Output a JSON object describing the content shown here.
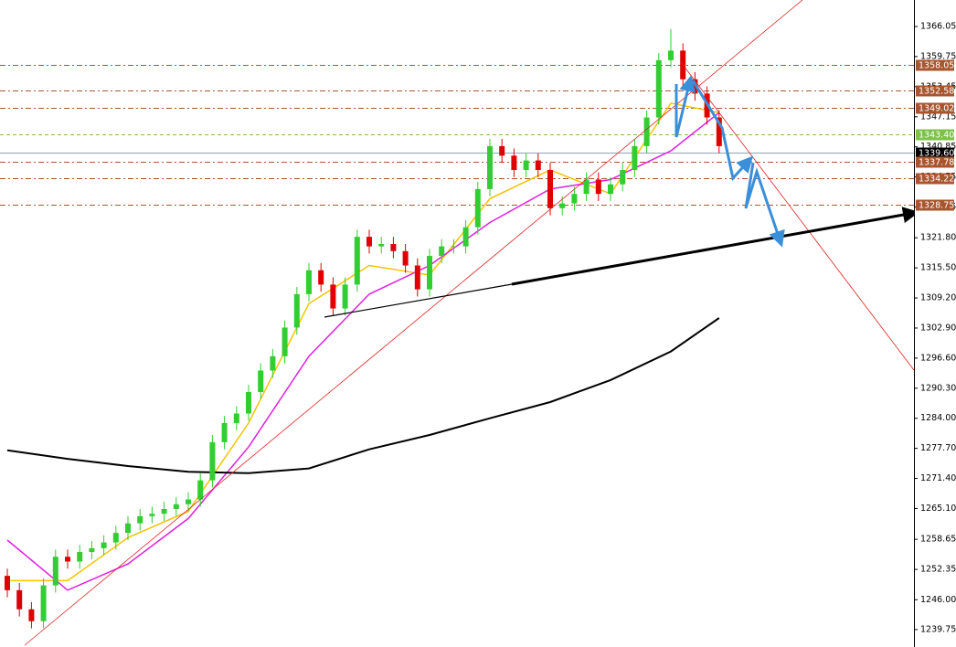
{
  "chart_data": {
    "type": "candlestick",
    "ylim": [
      1236.1,
      1371.6
    ],
    "yticks": [
      {
        "value": 1366.05,
        "label": "1366.05"
      },
      {
        "value": 1359.75,
        "label": "1359.75"
      },
      {
        "value": 1353.45,
        "label": "1353.45"
      },
      {
        "value": 1347.15,
        "label": "1347.15"
      },
      {
        "value": 1340.85,
        "label": "1340.85"
      },
      {
        "value": 1334.55,
        "label": "1334.55"
      },
      {
        "value": 1328.25,
        "label": "1328.25"
      },
      {
        "value": 1321.8,
        "label": "1321.80"
      },
      {
        "value": 1315.5,
        "label": "1315.50"
      },
      {
        "value": 1309.2,
        "label": "1309.20"
      },
      {
        "value": 1302.9,
        "label": "1302.90"
      },
      {
        "value": 1296.6,
        "label": "1296.60"
      },
      {
        "value": 1290.3,
        "label": "1290.30"
      },
      {
        "value": 1284.0,
        "label": "1284.00"
      },
      {
        "value": 1277.7,
        "label": "1277.70"
      },
      {
        "value": 1271.4,
        "label": "1271.40"
      },
      {
        "value": 1265.1,
        "label": "1265.10"
      },
      {
        "value": 1258.65,
        "label": "1258.65"
      },
      {
        "value": 1252.35,
        "label": "1252.35"
      },
      {
        "value": 1246.0,
        "label": "1246.00"
      },
      {
        "value": 1239.75,
        "label": "1239.75"
      }
    ],
    "up_color": "#32cd32",
    "down_color": "#e00000",
    "open": [
      1251,
      1248,
      1244,
      1241.5,
      1249,
      1255,
      1254,
      1256,
      1256.8,
      1258,
      1260,
      1262,
      1263.5,
      1264,
      1265,
      1266,
      1267,
      1271,
      1279,
      1283,
      1285,
      1289.5,
      1294,
      1297,
      1303,
      1310,
      1315,
      1312,
      1307,
      1312,
      1322,
      1320,
      1320.5,
      1319,
      1316,
      1311,
      1318,
      1320,
      1320,
      1324,
      1332,
      1341,
      1339,
      1336,
      1338,
      1336,
      1328,
      1329,
      1331,
      1334,
      1331,
      1333,
      1336,
      1341,
      1347,
      1359,
      1361,
      1355,
      1352,
      1347
    ],
    "high": [
      1252.5,
      1249.5,
      1245.5,
      1250.5,
      1256.5,
      1256.5,
      1257.5,
      1258.3,
      1259.5,
      1261.5,
      1263.5,
      1265,
      1265.5,
      1266.5,
      1267.5,
      1268.5,
      1272.5,
      1280.5,
      1284.5,
      1286.5,
      1291,
      1295.5,
      1298.5,
      1304.5,
      1311.5,
      1316.5,
      1316.5,
      1313.5,
      1313.5,
      1323.5,
      1323.5,
      1322,
      1322,
      1320.5,
      1317.5,
      1319.5,
      1321.5,
      1321.5,
      1325.5,
      1333.5,
      1342.5,
      1342.5,
      1340.5,
      1339.5,
      1339.5,
      1337.5,
      1330.5,
      1332.5,
      1335.5,
      1335.5,
      1334.5,
      1337.5,
      1342.5,
      1348.5,
      1360.5,
      1365.5,
      1362.5,
      1356.5,
      1353.5,
      1348.5
    ],
    "low": [
      1246.5,
      1242.5,
      1240,
      1240,
      1247.5,
      1252.5,
      1252.5,
      1254.5,
      1255.3,
      1256.5,
      1258.5,
      1260.5,
      1262,
      1262.5,
      1263.5,
      1264.5,
      1265.5,
      1269.5,
      1277.5,
      1281.5,
      1283.5,
      1288,
      1292.5,
      1295.5,
      1301.5,
      1308.5,
      1310.5,
      1305.5,
      1305.5,
      1310.5,
      1318.5,
      1318.5,
      1317.5,
      1314.5,
      1309.5,
      1309.5,
      1316.5,
      1318.5,
      1318.5,
      1322.5,
      1330.5,
      1337.5,
      1334.5,
      1334.5,
      1334.5,
      1326.5,
      1326.5,
      1327.5,
      1329.5,
      1329.5,
      1329.5,
      1331.5,
      1334.5,
      1339.5,
      1345.5,
      1357.5,
      1353.5,
      1350.5,
      1345.5,
      1339.5
    ],
    "close": [
      1248,
      1244,
      1241.5,
      1249,
      1255,
      1254,
      1256,
      1256.8,
      1258,
      1260,
      1262,
      1263.5,
      1264,
      1265,
      1266,
      1267,
      1271,
      1279,
      1283,
      1285,
      1289.5,
      1294,
      1297,
      1303,
      1310,
      1315,
      1312,
      1307,
      1312,
      1322,
      1320,
      1320.5,
      1319,
      1316,
      1311,
      1318,
      1320,
      1320,
      1324,
      1332,
      1341,
      1339,
      1336,
      1338,
      1336,
      1328,
      1329,
      1331,
      1334,
      1331,
      1333,
      1336,
      1341,
      1347,
      1359,
      1361,
      1355,
      1352,
      1347,
      1341
    ],
    "moving_averages": [
      {
        "color": "#f5c400",
        "x": [
          0,
          5,
          10,
          15,
          20,
          25,
          30,
          35,
          40,
          45,
          50,
          55,
          59
        ],
        "values": [
          1250,
          1250,
          1259,
          1264.5,
          1283,
          1308,
          1316,
          1314,
          1330,
          1336,
          1331,
          1350,
          1348
        ]
      },
      {
        "color": "#e020e0",
        "x": [
          0,
          5,
          10,
          15,
          20,
          25,
          30,
          35,
          40,
          45,
          50,
          55,
          59
        ],
        "values": [
          1258.5,
          1248,
          1253.5,
          1263,
          1278,
          1297,
          1310,
          1316,
          1325,
          1332,
          1334,
          1340,
          1348
        ]
      },
      {
        "color": "#000000",
        "x": [
          0,
          5,
          10,
          15,
          20,
          25,
          30,
          35,
          40,
          45,
          50,
          55,
          59
        ],
        "values": [
          1277.3,
          1275.5,
          1274,
          1272.8,
          1272.5,
          1273.5,
          1277.5,
          1280.5,
          1284,
          1287.4,
          1292,
          1298,
          1305
        ]
      }
    ],
    "levels": [
      {
        "value": 1358.05,
        "color": "#a8552e"
      },
      {
        "value": 1352.58,
        "color": "#a8552e"
      },
      {
        "value": 1349.02,
        "color": "#a8552e"
      },
      {
        "value": {
          "value": 1343.4,
          "label": "1343.40"
        },
        "color": "#7cc247"
      },
      {
        "value": {
          "value": 1339.6,
          "label": "1339.60"
        },
        "color": "#000000"
      },
      {
        "value": 1337.78,
        "color": "#a8552e"
      },
      {
        "value": 1334.22,
        "color": "#a8552e"
      },
      {
        "value": 1328.75,
        "color": "#a8552e"
      }
    ]
  }
}
